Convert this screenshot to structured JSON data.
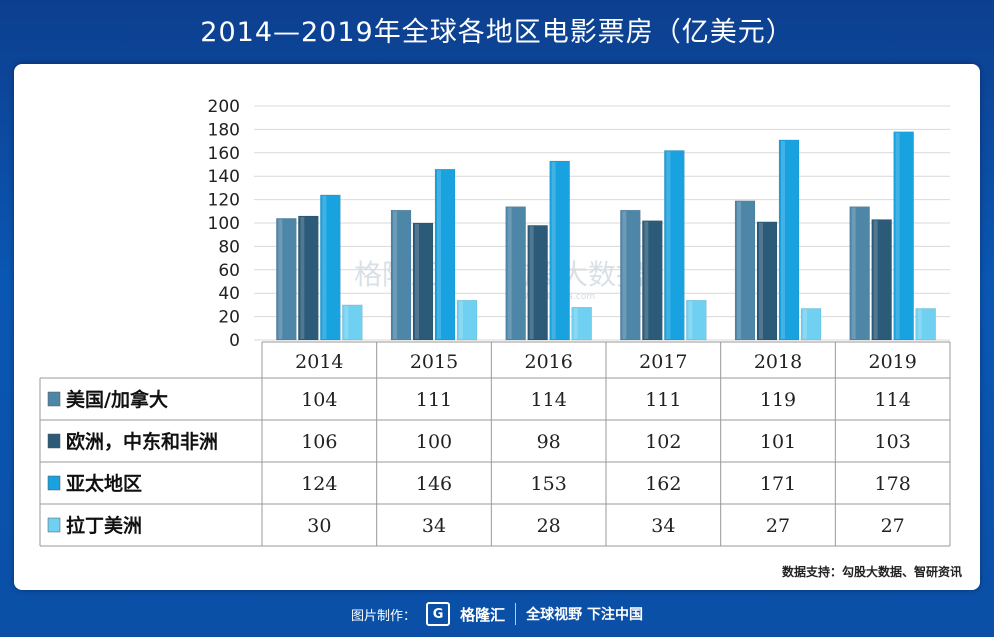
{
  "header": {
    "title": "2014—2019年全球各地区电影票房（亿美元）"
  },
  "chart_data": {
    "type": "bar",
    "categories": [
      "2014",
      "2015",
      "2016",
      "2017",
      "2018",
      "2019"
    ],
    "ylim": [
      0,
      200
    ],
    "yticks": [
      0,
      20,
      40,
      60,
      80,
      100,
      120,
      140,
      160,
      180,
      200
    ],
    "grid": true,
    "legend": "table-left",
    "series": [
      {
        "name": "美国/加拿大",
        "color": "#4e86a8",
        "values": [
          104,
          111,
          114,
          111,
          119,
          114
        ]
      },
      {
        "name": "欧洲，中东和非洲",
        "color": "#2b5b78",
        "values": [
          106,
          100,
          98,
          102,
          101,
          103
        ]
      },
      {
        "name": "亚太地区",
        "color": "#19a2e0",
        "values": [
          124,
          146,
          153,
          162,
          171,
          178
        ]
      },
      {
        "name": "拉丁美洲",
        "color": "#6fd0f2",
        "values": [
          30,
          34,
          28,
          34,
          27,
          27
        ]
      }
    ]
  },
  "watermark": {
    "brand": "格隆汇",
    "brand2": "勾股大数据",
    "url": "www.gogudata.com"
  },
  "source": {
    "text": "数据支持：勾股大数据、智研资讯"
  },
  "footer": {
    "made_by": "图片制作：",
    "logo_letter": "G",
    "logo_name": "格隆汇",
    "slogan": "全球视野 下注中国"
  }
}
